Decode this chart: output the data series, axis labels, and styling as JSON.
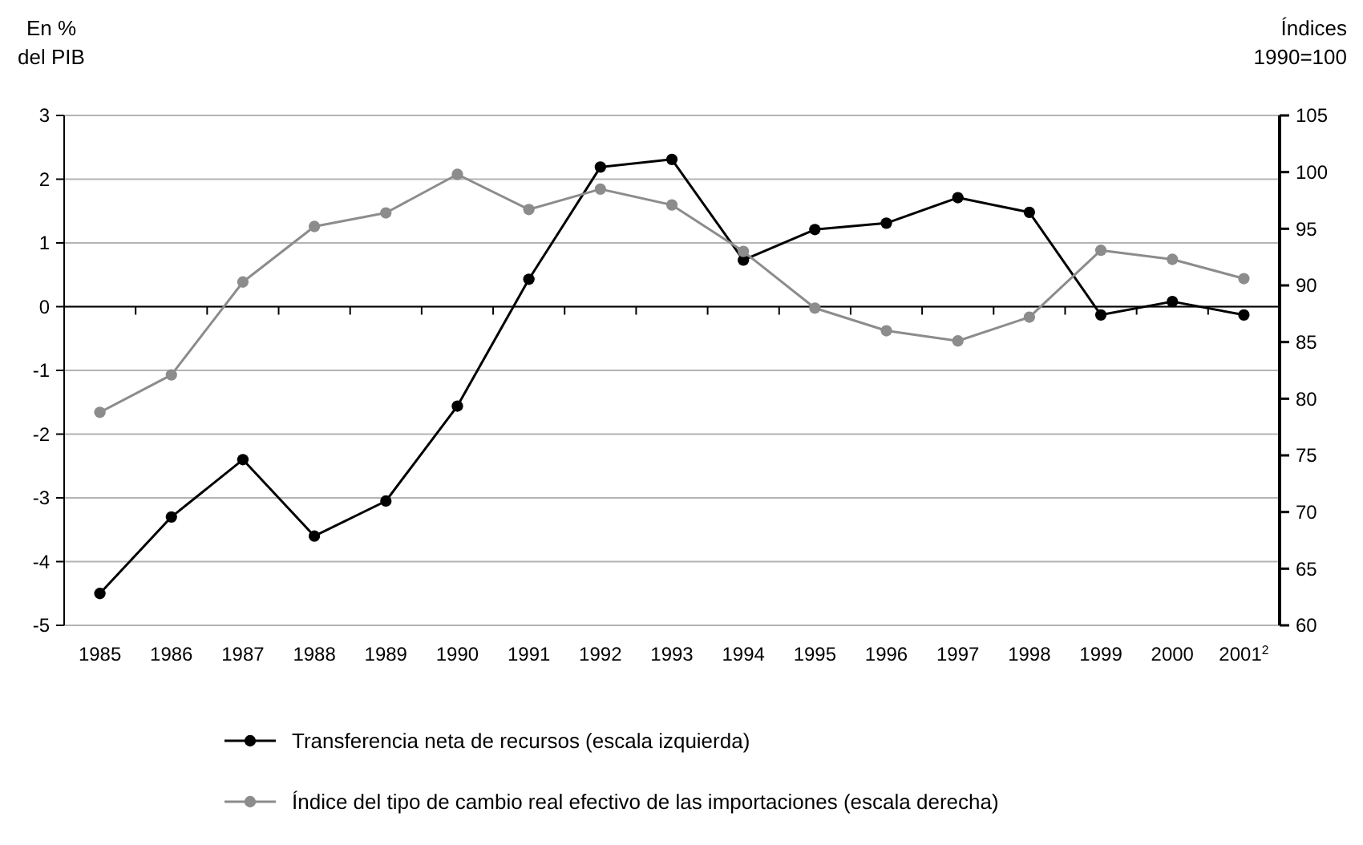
{
  "chart_data": {
    "type": "line",
    "ylabel": "En %\ndel PIB",
    "y2label": "Índices\n1990=100",
    "categories": [
      "1985",
      "1986",
      "1987",
      "1988",
      "1989",
      "1990",
      "1991",
      "1992",
      "1993",
      "1994",
      "1995",
      "1996",
      "1997",
      "1998",
      "1999",
      "2000",
      "2001$^{2}$"
    ],
    "series": [
      {
        "name": "Transferencia neta de recursos (escala izquierda)",
        "color": "#000000",
        "values": [
          -4.5,
          -3.3,
          -2.4,
          -3.6,
          -3.05,
          -1.56,
          0.43,
          2.19,
          2.31,
          0.73,
          1.21,
          1.31,
          1.71,
          1.48,
          -0.13,
          0.08,
          -0.13
        ]
      },
      {
        "name": "Índice del tipo de cambio real efectivo de las importaciones (escala derecha)",
        "color": "#8c8c8c",
        "axis": "y2",
        "values": [
          78.8,
          82.1,
          90.3,
          95.2,
          96.4,
          99.8,
          96.7,
          98.5,
          97.1,
          93.0,
          88.0,
          86.0,
          85.1,
          87.2,
          93.1,
          92.3,
          90.6
        ]
      }
    ],
    "ylim": [
      -5,
      3
    ],
    "yticks": [
      -5,
      -4,
      -3,
      -2,
      -1,
      0,
      1,
      2,
      3
    ],
    "y2lim": [
      60,
      105
    ],
    "y2ticks": [
      60,
      65,
      70,
      75,
      80,
      85,
      90,
      95,
      100,
      105
    ],
    "grid": "y",
    "legend": "bottom",
    "marker": "circle",
    "line_style": "solid"
  }
}
